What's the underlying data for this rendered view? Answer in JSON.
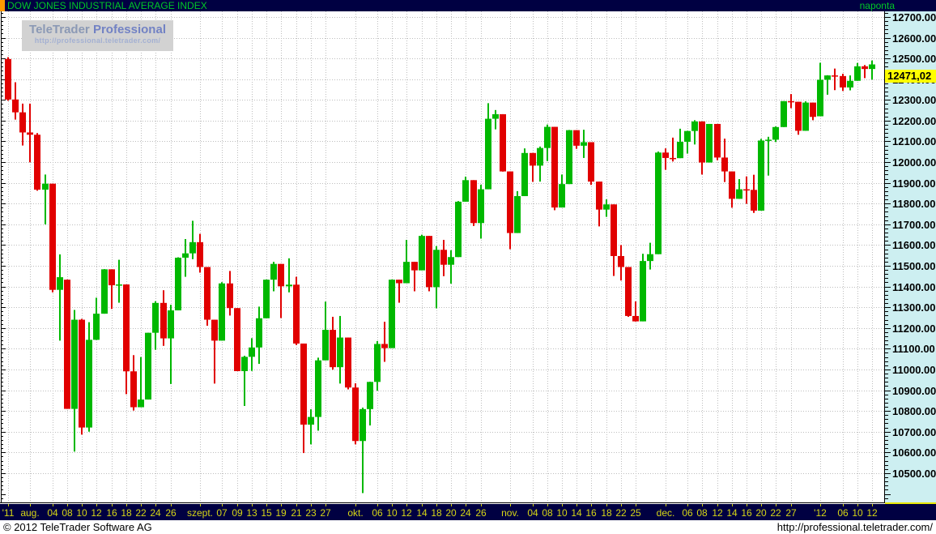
{
  "header": {
    "title": "DOW JONES INDUSTRIAL AVERAGE INDEX",
    "interval_label": "naponta"
  },
  "watermark": {
    "brand": "TeleTrader",
    "product": "Professional",
    "url": "http://professional.teletrader.com/"
  },
  "footer": {
    "left": "© 2012 TeleTrader Software AG",
    "right": "http://professional.teletrader.com/"
  },
  "last_price_label": "12471,02",
  "colors": {
    "titlebar_bg": "#000042",
    "title_text": "#00c827",
    "marker_orange": "#ff9a00",
    "date_text": "#d6d616",
    "axis_bg": "#cdeff1",
    "price_tag_bg": "#ffff00",
    "grid": "#bdbdbd",
    "up": "#00b800",
    "down": "#e10000"
  },
  "chart_data": {
    "type": "candlestick",
    "title": "DOW JONES INDUSTRIAL AVERAGE INDEX",
    "interval": "naponta",
    "up_color": "#00b800",
    "down_color": "#e10000",
    "axis_bg": "#cdeff1",
    "grid": "on",
    "last_price": 12471.02,
    "y_axis": {
      "top_price": 12727,
      "bottom_price": 10359,
      "label_min": 10500,
      "label_max": 12700,
      "step": 100,
      "minor_step": 20
    },
    "y_labels": [
      "12700.00",
      "12600.00",
      "12500.00",
      "12400.00",
      "12300.00",
      "12200.00",
      "12100.00",
      "12000.00",
      "11900.00",
      "11800.00",
      "11700.00",
      "11600.00",
      "11500.00",
      "11400.00",
      "11300.00",
      "11200.00",
      "11100.00",
      "11000.00",
      "10900.00",
      "10800.00",
      "10700.00",
      "10600.00",
      "10500.00"
    ],
    "x_ticks": [
      {
        "l": "'11",
        "i": 0
      },
      {
        "l": "aug.",
        "i": 3
      },
      {
        "l": "04",
        "i": 6
      },
      {
        "l": "08",
        "i": 8
      },
      {
        "l": "10",
        "i": 10
      },
      {
        "l": "12",
        "i": 12
      },
      {
        "l": "16",
        "i": 14
      },
      {
        "l": "18",
        "i": 16
      },
      {
        "l": "22",
        "i": 18
      },
      {
        "l": "24",
        "i": 20
      },
      {
        "l": "26",
        "i": 22
      },
      {
        "l": "szept.",
        "i": 26
      },
      {
        "l": "07",
        "i": 29
      },
      {
        "l": "09",
        "i": 31
      },
      {
        "l": "13",
        "i": 33
      },
      {
        "l": "15",
        "i": 35
      },
      {
        "l": "19",
        "i": 37
      },
      {
        "l": "21",
        "i": 39
      },
      {
        "l": "23",
        "i": 41
      },
      {
        "l": "27",
        "i": 43
      },
      {
        "l": "okt.",
        "i": 47
      },
      {
        "l": "06",
        "i": 50
      },
      {
        "l": "10",
        "i": 52
      },
      {
        "l": "12",
        "i": 54
      },
      {
        "l": "14",
        "i": 56
      },
      {
        "l": "18",
        "i": 58
      },
      {
        "l": "20",
        "i": 60
      },
      {
        "l": "24",
        "i": 62
      },
      {
        "l": "26",
        "i": 64
      },
      {
        "l": "nov.",
        "i": 68
      },
      {
        "l": "04",
        "i": 71
      },
      {
        "l": "08",
        "i": 73
      },
      {
        "l": "10",
        "i": 75
      },
      {
        "l": "14",
        "i": 77
      },
      {
        "l": "16",
        "i": 79
      },
      {
        "l": "18",
        "i": 81
      },
      {
        "l": "22",
        "i": 83
      },
      {
        "l": "25",
        "i": 85
      },
      {
        "l": "dec.",
        "i": 89
      },
      {
        "l": "06",
        "i": 92
      },
      {
        "l": "08",
        "i": 94
      },
      {
        "l": "12",
        "i": 96
      },
      {
        "l": "14",
        "i": 98
      },
      {
        "l": "16",
        "i": 100
      },
      {
        "l": "20",
        "i": 102
      },
      {
        "l": "22",
        "i": 104
      },
      {
        "l": "27",
        "i": 106
      },
      {
        "l": "'12",
        "i": 110
      },
      {
        "l": "06",
        "i": 113
      },
      {
        "l": "10",
        "i": 115
      },
      {
        "l": "12",
        "i": 117
      }
    ],
    "candles": [
      [
        "2011-07-27",
        12497,
        12506,
        12296,
        12302
      ],
      [
        "2011-07-28",
        12302,
        12385,
        12205,
        12240
      ],
      [
        "2011-07-29",
        12240,
        12282,
        12080,
        12143
      ],
      [
        "2011-08-01",
        12143,
        12282,
        11999,
        12132
      ],
      [
        "2011-08-02",
        12132,
        12140,
        11862,
        11867
      ],
      [
        "2011-08-03",
        11867,
        11940,
        11700,
        11896
      ],
      [
        "2011-08-04",
        11896,
        11896,
        11372,
        11384
      ],
      [
        "2011-08-05",
        11384,
        11555,
        11139,
        11445
      ],
      [
        "2011-08-08",
        11433,
        11434,
        10810,
        10810
      ],
      [
        "2011-08-09",
        10810,
        11287,
        10604,
        11240
      ],
      [
        "2011-08-10",
        11240,
        11244,
        10686,
        10720
      ],
      [
        "2011-08-11",
        10720,
        11228,
        10700,
        11143
      ],
      [
        "2011-08-12",
        11143,
        11346,
        11142,
        11269
      ],
      [
        "2011-08-15",
        11269,
        11484,
        11269,
        11483
      ],
      [
        "2011-08-16",
        11483,
        11483,
        11292,
        11406
      ],
      [
        "2011-08-17",
        11406,
        11529,
        11322,
        11410
      ],
      [
        "2011-08-18",
        11410,
        11410,
        10881,
        10991
      ],
      [
        "2011-08-19",
        10991,
        11069,
        10802,
        10818
      ],
      [
        "2011-08-22",
        10818,
        11060,
        10818,
        10855
      ],
      [
        "2011-08-23",
        10855,
        11177,
        10855,
        11177
      ],
      [
        "2011-08-24",
        11177,
        11329,
        11095,
        11321
      ],
      [
        "2011-08-25",
        11321,
        11382,
        11114,
        11150
      ],
      [
        "2011-08-26",
        11150,
        11312,
        10930,
        11285
      ],
      [
        "2011-08-29",
        11285,
        11541,
        11285,
        11539
      ],
      [
        "2011-08-30",
        11539,
        11629,
        11447,
        11560
      ],
      [
        "2011-08-31",
        11560,
        11717,
        11532,
        11614
      ],
      [
        "2011-09-01",
        11614,
        11654,
        11467,
        11494
      ],
      [
        "2011-09-02",
        11494,
        11494,
        11211,
        11240
      ],
      [
        "2011-09-06",
        11240,
        11240,
        10932,
        11139
      ],
      [
        "2011-09-07",
        11139,
        11421,
        11139,
        11415
      ],
      [
        "2011-09-08",
        11415,
        11475,
        11260,
        11296
      ],
      [
        "2011-09-09",
        11296,
        11296,
        10992,
        10992
      ],
      [
        "2011-09-12",
        10992,
        11066,
        10824,
        11061
      ],
      [
        "2011-09-13",
        11061,
        11151,
        10993,
        11106
      ],
      [
        "2011-09-14",
        11106,
        11303,
        11027,
        11247
      ],
      [
        "2011-09-15",
        11247,
        11434,
        11247,
        11433
      ],
      [
        "2011-09-16",
        11433,
        11519,
        11377,
        11509
      ],
      [
        "2011-09-19",
        11509,
        11509,
        11248,
        11401
      ],
      [
        "2011-09-20",
        11401,
        11536,
        11372,
        11409
      ],
      [
        "2011-09-21",
        11409,
        11447,
        11118,
        11125
      ],
      [
        "2011-09-22",
        11125,
        11125,
        10597,
        10734
      ],
      [
        "2011-09-23",
        10734,
        10808,
        10639,
        10771
      ],
      [
        "2011-09-26",
        10771,
        11057,
        10705,
        11044
      ],
      [
        "2011-09-27",
        11044,
        11327,
        11044,
        11191
      ],
      [
        "2011-09-28",
        11191,
        11254,
        10999,
        11011
      ],
      [
        "2011-09-29",
        11011,
        11258,
        10932,
        11154
      ],
      [
        "2011-09-30",
        11154,
        11154,
        10904,
        10913
      ],
      [
        "2011-10-03",
        10913,
        10933,
        10639,
        10655
      ],
      [
        "2011-10-04",
        10655,
        10816,
        10404,
        10809
      ],
      [
        "2011-10-05",
        10809,
        10941,
        10730,
        10940
      ],
      [
        "2011-10-06",
        10940,
        11137,
        10898,
        11123
      ],
      [
        "2011-10-07",
        11123,
        11230,
        11037,
        11103
      ],
      [
        "2011-10-10",
        11103,
        11434,
        11103,
        11433
      ],
      [
        "2011-10-11",
        11433,
        11433,
        11322,
        11416
      ],
      [
        "2011-10-12",
        11416,
        11625,
        11416,
        11519
      ],
      [
        "2011-10-13",
        11519,
        11519,
        11377,
        11478
      ],
      [
        "2011-10-14",
        11478,
        11650,
        11478,
        11644
      ],
      [
        "2011-10-17",
        11644,
        11644,
        11377,
        11397
      ],
      [
        "2011-10-18",
        11397,
        11595,
        11295,
        11577
      ],
      [
        "2011-10-19",
        11577,
        11625,
        11450,
        11505
      ],
      [
        "2011-10-20",
        11505,
        11575,
        11414,
        11542
      ],
      [
        "2011-10-21",
        11542,
        11812,
        11542,
        11809
      ],
      [
        "2011-10-24",
        11809,
        11930,
        11809,
        11913
      ],
      [
        "2011-10-25",
        11913,
        11913,
        11692,
        11706
      ],
      [
        "2011-10-26",
        11706,
        11891,
        11631,
        11869
      ],
      [
        "2011-10-27",
        11869,
        12284,
        11869,
        12209
      ],
      [
        "2011-10-28",
        12209,
        12251,
        12158,
        12231
      ],
      [
        "2011-10-31",
        12231,
        12231,
        11954,
        11955
      ],
      [
        "2011-11-01",
        11955,
        11955,
        11580,
        11658
      ],
      [
        "2011-11-02",
        11658,
        11860,
        11658,
        11836
      ],
      [
        "2011-11-03",
        11836,
        12066,
        11836,
        12044
      ],
      [
        "2011-11-04",
        12044,
        12044,
        11905,
        11983
      ],
      [
        "2011-11-07",
        11983,
        12075,
        11906,
        12068
      ],
      [
        "2011-11-08",
        12068,
        12181,
        12005,
        12170
      ],
      [
        "2011-11-09",
        12170,
        12170,
        11768,
        11781
      ],
      [
        "2011-11-10",
        11781,
        11940,
        11781,
        11894
      ],
      [
        "2011-11-11",
        11894,
        12155,
        11894,
        12154
      ],
      [
        "2011-11-14",
        12154,
        12154,
        12064,
        12079
      ],
      [
        "2011-11-15",
        12079,
        12156,
        12020,
        12096
      ],
      [
        "2011-11-16",
        12096,
        12096,
        11890,
        11906
      ],
      [
        "2011-11-17",
        11906,
        11906,
        11690,
        11771
      ],
      [
        "2011-11-18",
        11771,
        11820,
        11736,
        11796
      ],
      [
        "2011-11-21",
        11796,
        11796,
        11451,
        11547
      ],
      [
        "2011-11-22",
        11547,
        11600,
        11429,
        11494
      ],
      [
        "2011-11-23",
        11494,
        11494,
        11254,
        11258
      ],
      [
        "2011-11-25",
        11258,
        11328,
        11231,
        11232
      ],
      [
        "2011-11-28",
        11232,
        11558,
        11232,
        11523
      ],
      [
        "2011-11-29",
        11523,
        11611,
        11482,
        11556
      ],
      [
        "2011-11-30",
        11556,
        12051,
        11556,
        12046
      ],
      [
        "2011-12-01",
        12046,
        12066,
        11963,
        12020
      ],
      [
        "2011-12-02",
        12020,
        12118,
        12003,
        12019
      ],
      [
        "2011-12-05",
        12019,
        12161,
        12019,
        12098
      ],
      [
        "2011-12-06",
        12098,
        12151,
        12041,
        12150
      ],
      [
        "2011-12-07",
        12150,
        12202,
        12085,
        12196
      ],
      [
        "2011-12-08",
        12196,
        12196,
        11940,
        11998
      ],
      [
        "2011-12-09",
        11998,
        12184,
        11998,
        12184
      ],
      [
        "2011-12-12",
        12184,
        12184,
        12009,
        12022
      ],
      [
        "2011-12-13",
        12022,
        12113,
        11904,
        11955
      ],
      [
        "2011-12-14",
        11955,
        11955,
        11780,
        11823
      ],
      [
        "2011-12-15",
        11823,
        11918,
        11823,
        11869
      ],
      [
        "2011-12-16",
        11869,
        11931,
        11799,
        11866
      ],
      [
        "2011-12-19",
        11866,
        11939,
        11755,
        11766
      ],
      [
        "2011-12-20",
        11766,
        12112,
        11766,
        12104
      ],
      [
        "2011-12-21",
        12104,
        12122,
        11935,
        12108
      ],
      [
        "2011-12-22",
        12108,
        12172,
        12097,
        12169
      ],
      [
        "2011-12-23",
        12169,
        12294,
        12169,
        12294
      ],
      [
        "2011-12-27",
        12294,
        12328,
        12260,
        12291
      ],
      [
        "2011-12-28",
        12291,
        12291,
        12132,
        12151
      ],
      [
        "2011-12-29",
        12151,
        12293,
        12151,
        12287
      ],
      [
        "2011-12-30",
        12287,
        12287,
        12202,
        12218
      ],
      [
        "2012-01-03",
        12221,
        12479,
        12221,
        12397
      ],
      [
        "2012-01-04",
        12397,
        12419,
        12325,
        12418
      ],
      [
        "2012-01-05",
        12418,
        12451,
        12347,
        12415
      ],
      [
        "2012-01-06",
        12415,
        12426,
        12343,
        12360
      ],
      [
        "2012-01-09",
        12360,
        12418,
        12346,
        12392
      ],
      [
        "2012-01-10",
        12392,
        12478,
        12392,
        12462
      ],
      [
        "2012-01-11",
        12462,
        12468,
        12405,
        12449
      ],
      [
        "2012-01-12",
        12449,
        12490,
        12398,
        12471.02
      ]
    ]
  }
}
